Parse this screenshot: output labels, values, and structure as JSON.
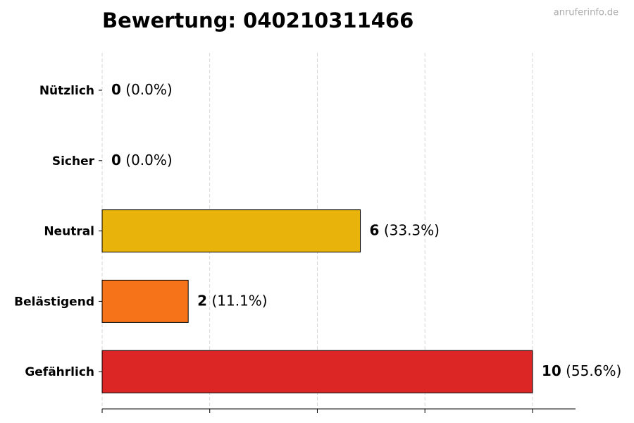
{
  "chart_data": {
    "type": "hbar",
    "title": "Bewertung: 040210311466",
    "watermark": "anruferinfo.de",
    "categories": [
      "Nützlich",
      "Sicher",
      "Neutral",
      "Belästigend",
      "Gefährlich"
    ],
    "values": [
      0,
      0,
      6,
      2,
      10
    ],
    "shares": [
      0.0,
      0.0,
      33.3,
      11.1,
      55.6
    ],
    "share_labels": [
      "(0.0%)",
      "(0.0%)",
      "(33.3%)",
      "(11.1%)",
      "(55.6%)"
    ],
    "colors": [
      "#2e9e44",
      "#6abf4b",
      "#e8b40c",
      "#f77319",
      "#dc2626"
    ],
    "xlim": [
      0,
      11
    ],
    "xticks": [
      0,
      2.5,
      5,
      7.5,
      10
    ],
    "grid": true
  }
}
